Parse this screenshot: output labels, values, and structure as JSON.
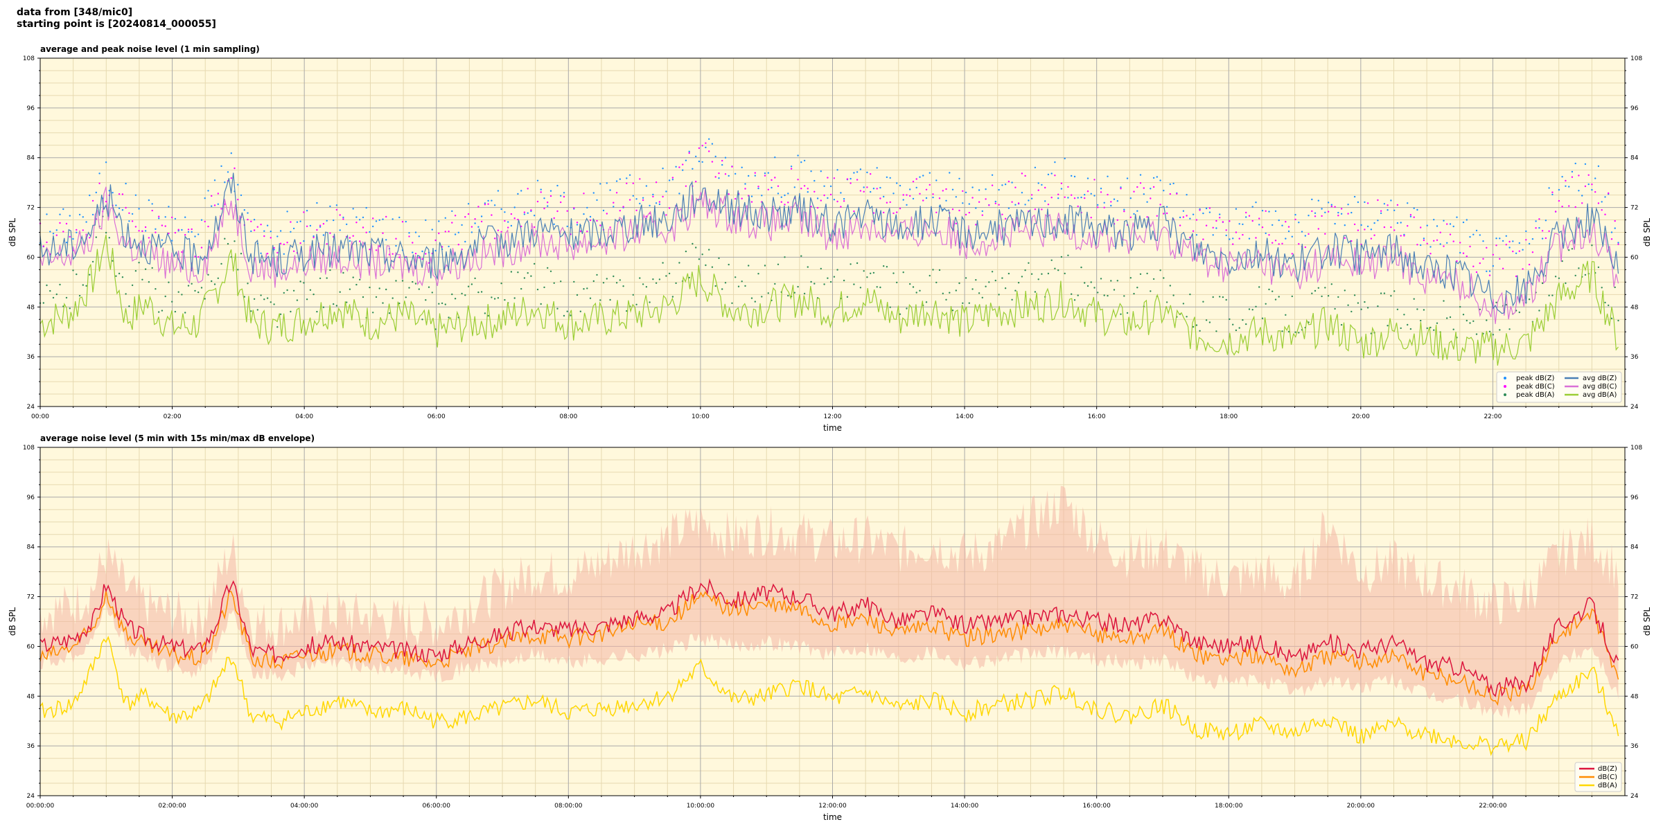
{
  "header": {
    "line1": "data from [348/mic0]",
    "line2": "starting point is [20240814_000055]"
  },
  "colors": {
    "background": "#fff8dc",
    "grid_major": "#a9a9a9",
    "grid_minor": "#e6d9b0",
    "avg_z": "#4a7fb5",
    "avg_c": "#da70d6",
    "avg_a": "#9acd32",
    "peak_z": "#1e90ff",
    "peak_c": "#ff00ff",
    "peak_a": "#2e8b57",
    "env_z": "#dc143c",
    "env_c": "#ff8c00",
    "env_a": "#ffd700",
    "envelope": "#f4b6a6"
  },
  "chart_data": [
    {
      "type": "line",
      "title": "average and peak noise level (1 min sampling)",
      "xlabel": "time",
      "ylabel": "dB SPL",
      "xlim": [
        0,
        24
      ],
      "ylim": [
        24,
        108
      ],
      "grid": true,
      "legend_position": "bottom-right",
      "x_tick_labels": [
        "00:00",
        "02:00",
        "04:00",
        "06:00",
        "08:00",
        "10:00",
        "12:00",
        "14:00",
        "16:00",
        "18:00",
        "20:00",
        "22:00"
      ],
      "y_tick_labels": [
        "24",
        "36",
        "48",
        "60",
        "72",
        "84",
        "96",
        "108"
      ],
      "legend": [
        "peak dB(Z)",
        "peak dB(C)",
        "peak dB(A)",
        "avg dB(Z)",
        "avg dB(C)",
        "avg dB(A)"
      ],
      "x_hours": [
        0,
        0.5,
        0.8,
        1.0,
        1.3,
        1.6,
        2.0,
        2.4,
        2.6,
        2.9,
        3.2,
        3.6,
        4.0,
        4.5,
        5.0,
        5.5,
        6.0,
        6.5,
        7.0,
        7.5,
        8.0,
        8.5,
        9.0,
        9.5,
        10.0,
        10.5,
        11.0,
        11.5,
        12.0,
        12.5,
        13.0,
        13.5,
        14.0,
        14.5,
        15.0,
        15.5,
        16.0,
        16.5,
        17.0,
        17.5,
        18.0,
        18.5,
        19.0,
        19.5,
        20.0,
        20.5,
        21.0,
        21.5,
        22.0,
        22.5,
        23.0,
        23.5,
        23.9
      ],
      "series": [
        {
          "name": "avg dB(Z)",
          "values": [
            61,
            63,
            67,
            75,
            66,
            63,
            61,
            60,
            65,
            78,
            60,
            59,
            61,
            62,
            61,
            60,
            59,
            62,
            64,
            67,
            65,
            66,
            68,
            69,
            76,
            72,
            70,
            71,
            68,
            70,
            67,
            69,
            66,
            67,
            68,
            69,
            67,
            66,
            68,
            62,
            60,
            61,
            58,
            62,
            60,
            62,
            57,
            56,
            50,
            52,
            65,
            70,
            57
          ]
        },
        {
          "name": "avg dB(C)",
          "values": [
            58,
            61,
            65,
            73,
            63,
            61,
            58,
            57,
            62,
            74,
            58,
            57,
            59,
            60,
            59,
            58,
            57,
            60,
            62,
            64,
            63,
            64,
            66,
            67,
            73,
            70,
            68,
            69,
            65,
            68,
            65,
            67,
            64,
            65,
            66,
            67,
            65,
            64,
            66,
            60,
            58,
            59,
            55,
            60,
            58,
            60,
            55,
            54,
            48,
            50,
            63,
            68,
            55
          ]
        },
        {
          "name": "avg dB(A)",
          "values": [
            44,
            47,
            55,
            64,
            45,
            49,
            43,
            44,
            50,
            60,
            44,
            43,
            45,
            48,
            44,
            46,
            42,
            44,
            45,
            48,
            44,
            45,
            46,
            48,
            55,
            47,
            48,
            50,
            47,
            50,
            45,
            48,
            44,
            47,
            48,
            50,
            46,
            44,
            47,
            41,
            40,
            42,
            40,
            44,
            39,
            42,
            40,
            38,
            38,
            39,
            50,
            56,
            40
          ]
        },
        {
          "name": "peak dB(Z)",
          "values": [
            66,
            68,
            72,
            80,
            73,
            70,
            68,
            66,
            75,
            82,
            66,
            65,
            68,
            69,
            68,
            66,
            65,
            69,
            72,
            74,
            72,
            73,
            76,
            77,
            86,
            80,
            79,
            80,
            76,
            78,
            75,
            77,
            74,
            75,
            78,
            79,
            76,
            74,
            77,
            70,
            68,
            70,
            66,
            72,
            70,
            72,
            66,
            66,
            60,
            62,
            76,
            80,
            68
          ]
        },
        {
          "name": "peak dB(C)",
          "values": [
            64,
            66,
            70,
            78,
            70,
            68,
            66,
            64,
            72,
            80,
            64,
            63,
            66,
            67,
            66,
            64,
            63,
            67,
            70,
            72,
            70,
            71,
            74,
            75,
            84,
            78,
            77,
            78,
            74,
            76,
            73,
            75,
            72,
            73,
            76,
            77,
            74,
            72,
            75,
            68,
            66,
            68,
            64,
            70,
            68,
            70,
            64,
            64,
            58,
            60,
            74,
            78,
            66
          ]
        },
        {
          "name": "peak dB(A)",
          "values": [
            48,
            52,
            60,
            68,
            52,
            55,
            48,
            49,
            56,
            65,
            48,
            47,
            50,
            53,
            49,
            51,
            47,
            50,
            51,
            54,
            50,
            51,
            52,
            54,
            62,
            53,
            54,
            56,
            53,
            56,
            51,
            54,
            50,
            53,
            54,
            56,
            52,
            50,
            53,
            47,
            46,
            48,
            46,
            50,
            45,
            48,
            46,
            44,
            44,
            45,
            56,
            60,
            46
          ]
        }
      ]
    },
    {
      "type": "line",
      "title": "average noise level (5 min with 15s min/max dB envelope)",
      "xlabel": "time",
      "ylabel": "dB SPL",
      "xlim": [
        0,
        24
      ],
      "ylim": [
        24,
        108
      ],
      "grid": true,
      "legend_position": "bottom-right",
      "x_tick_labels": [
        "00:00:00",
        "02:00:00",
        "04:00:00",
        "06:00:00",
        "08:00:00",
        "10:00:00",
        "12:00:00",
        "14:00:00",
        "16:00:00",
        "18:00:00",
        "20:00:00",
        "22:00:00"
      ],
      "y_tick_labels": [
        "24",
        "36",
        "48",
        "60",
        "72",
        "84",
        "96",
        "108"
      ],
      "legend": [
        "dB(Z)",
        "dB(C)",
        "dB(A)"
      ],
      "x_hours": [
        0,
        0.5,
        0.8,
        1.0,
        1.3,
        1.6,
        2.0,
        2.4,
        2.6,
        2.9,
        3.2,
        3.6,
        4.0,
        4.5,
        5.0,
        5.5,
        6.0,
        6.5,
        7.0,
        7.5,
        8.0,
        8.5,
        9.0,
        9.5,
        10.0,
        10.5,
        11.0,
        11.5,
        12.0,
        12.5,
        13.0,
        13.5,
        14.0,
        14.5,
        15.0,
        15.5,
        16.0,
        16.5,
        17.0,
        17.5,
        18.0,
        18.5,
        19.0,
        19.5,
        20.0,
        20.5,
        21.0,
        21.5,
        22.0,
        22.5,
        23.0,
        23.5,
        23.9
      ],
      "series": [
        {
          "name": "dB(Z)",
          "values": [
            60,
            62,
            66,
            75,
            65,
            62,
            60,
            59,
            63,
            76,
            59,
            58,
            60,
            61,
            60,
            59,
            58,
            61,
            63,
            65,
            64,
            65,
            67,
            68,
            75,
            71,
            73,
            72,
            68,
            70,
            66,
            68,
            65,
            66,
            67,
            68,
            66,
            65,
            67,
            61,
            60,
            61,
            57,
            61,
            59,
            61,
            56,
            55,
            50,
            51,
            65,
            70,
            55
          ]
        },
        {
          "name": "dB(C)",
          "values": [
            57,
            60,
            64,
            73,
            63,
            60,
            58,
            57,
            61,
            73,
            57,
            56,
            58,
            59,
            58,
            57,
            56,
            59,
            61,
            63,
            62,
            63,
            65,
            66,
            72,
            69,
            70,
            69,
            65,
            67,
            63,
            65,
            62,
            63,
            64,
            65,
            63,
            62,
            64,
            58,
            57,
            58,
            54,
            58,
            56,
            58,
            53,
            52,
            48,
            49,
            63,
            68,
            52
          ]
        },
        {
          "name": "dB(A)",
          "values": [
            44,
            46,
            55,
            63,
            46,
            48,
            43,
            44,
            49,
            58,
            43,
            42,
            44,
            47,
            44,
            45,
            42,
            43,
            45,
            47,
            44,
            45,
            46,
            48,
            55,
            47,
            48,
            51,
            47,
            49,
            45,
            47,
            44,
            46,
            47,
            49,
            45,
            43,
            46,
            40,
            39,
            41,
            39,
            43,
            38,
            41,
            39,
            37,
            36,
            37,
            48,
            54,
            40
          ]
        },
        {
          "name": "envelope max",
          "values": [
            68,
            70,
            74,
            82,
            74,
            70,
            68,
            66,
            72,
            84,
            66,
            65,
            67,
            68,
            67,
            66,
            65,
            70,
            74,
            78,
            77,
            80,
            84,
            86,
            90,
            86,
            88,
            87,
            85,
            86,
            83,
            85,
            82,
            84,
            90,
            95,
            86,
            82,
            84,
            78,
            76,
            78,
            74,
            90,
            78,
            80,
            76,
            74,
            70,
            72,
            82,
            86,
            78
          ]
        },
        {
          "name": "envelope min",
          "values": [
            56,
            58,
            62,
            70,
            60,
            57,
            55,
            54,
            58,
            68,
            54,
            53,
            55,
            56,
            55,
            54,
            53,
            55,
            56,
            58,
            56,
            57,
            58,
            59,
            62,
            60,
            61,
            60,
            58,
            60,
            57,
            59,
            56,
            57,
            58,
            59,
            57,
            56,
            57,
            52,
            51,
            52,
            49,
            52,
            50,
            52,
            48,
            47,
            44,
            45,
            56,
            60,
            48
          ]
        }
      ]
    }
  ]
}
